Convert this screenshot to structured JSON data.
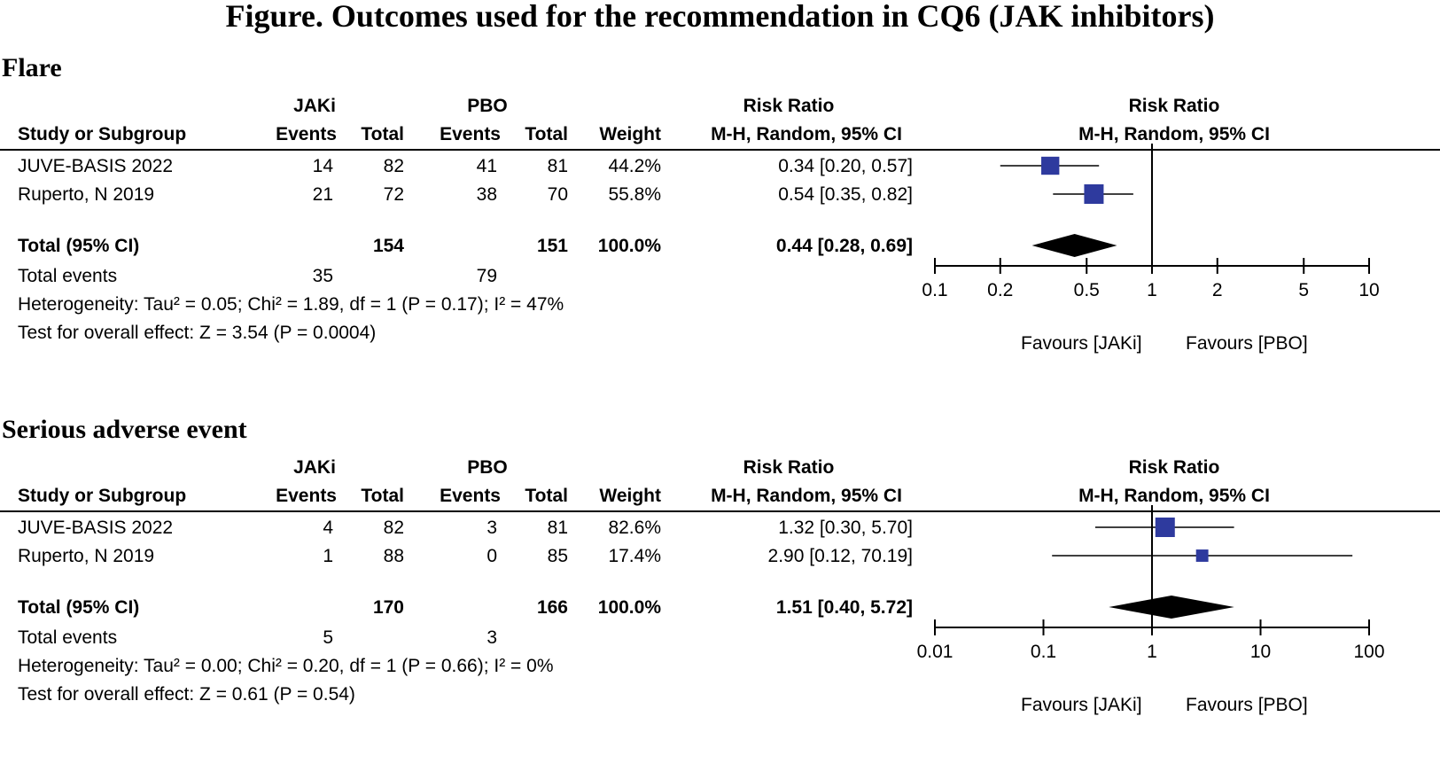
{
  "title": "Figure. Outcomes used for the recommendation in CQ6 (JAK inhibitors)",
  "header": {
    "group1": "JAKi",
    "group2": "PBO",
    "effect_top": "Risk Ratio",
    "study_col": "Study or Subgroup",
    "events": "Events",
    "total": "Total",
    "weight": "Weight",
    "method": "M-H, Random, 95% CI",
    "plot_top": "Risk Ratio",
    "plot_method": "M-H, Random, 95% CI"
  },
  "colors": {
    "study_marker": "#2E3A9E",
    "diamond": "#000000"
  },
  "sections": [
    {
      "heading": "Flare",
      "studies": [
        {
          "name": "JUVE-BASIS 2022",
          "e1": "14",
          "n1": "82",
          "e2": "41",
          "n2": "81",
          "weight": "44.2%",
          "ci_text": "0.34 [0.20, 0.57]"
        },
        {
          "name": "Ruperto, N 2019",
          "e1": "21",
          "n1": "72",
          "e2": "38",
          "n2": "70",
          "weight": "55.8%",
          "ci_text": "0.54 [0.35, 0.82]"
        }
      ],
      "total": {
        "label": "Total (95% CI)",
        "n1": "154",
        "n2": "151",
        "weight": "100.0%",
        "ci_text": "0.44 [0.28, 0.69]"
      },
      "total_events": {
        "label": "Total events",
        "e1": "35",
        "e2": "79"
      },
      "heterogeneity": "Heterogeneity: Tau² = 0.05; Chi² = 1.89, df = 1 (P = 0.17); I² = 47%",
      "overall": "Test for overall effect: Z = 3.54 (P = 0.0004)",
      "favours_left": "Favours [JAKi]",
      "favours_right": "Favours [PBO]"
    },
    {
      "heading": "Serious adverse event",
      "studies": [
        {
          "name": "JUVE-BASIS 2022",
          "e1": "4",
          "n1": "82",
          "e2": "3",
          "n2": "81",
          "weight": "82.6%",
          "ci_text": "1.32 [0.30, 5.70]"
        },
        {
          "name": "Ruperto, N 2019",
          "e1": "1",
          "n1": "88",
          "e2": "0",
          "n2": "85",
          "weight": "17.4%",
          "ci_text": "2.90 [0.12, 70.19]"
        }
      ],
      "total": {
        "label": "Total (95% CI)",
        "n1": "170",
        "n2": "166",
        "weight": "100.0%",
        "ci_text": "1.51 [0.40, 5.72]"
      },
      "total_events": {
        "label": "Total events",
        "e1": "5",
        "e2": "3"
      },
      "heterogeneity": "Heterogeneity: Tau² = 0.00; Chi² = 0.20, df = 1 (P = 0.66); I² = 0%",
      "overall": "Test for overall effect: Z = 0.61 (P = 0.54)",
      "favours_left": "Favours [JAKi]",
      "favours_right": "Favours [PBO]"
    }
  ],
  "chart_data": [
    {
      "type": "forest",
      "scale": "log",
      "xlim": [
        0.1,
        10
      ],
      "ticks": [
        0.1,
        0.2,
        0.5,
        1,
        2,
        5,
        10
      ],
      "tick_labels": [
        "0.1",
        "0.2",
        "0.5",
        "1",
        "2",
        "5",
        "10"
      ],
      "reference": 1,
      "studies": [
        {
          "name": "JUVE-BASIS 2022",
          "rr": 0.34,
          "lo": 0.2,
          "hi": 0.57,
          "weight": 44.2
        },
        {
          "name": "Ruperto, N 2019",
          "rr": 0.54,
          "lo": 0.35,
          "hi": 0.82,
          "weight": 55.8
        }
      ],
      "pooled": {
        "rr": 0.44,
        "lo": 0.28,
        "hi": 0.69
      }
    },
    {
      "type": "forest",
      "scale": "log",
      "xlim": [
        0.01,
        100
      ],
      "ticks": [
        0.01,
        0.1,
        1,
        10,
        100
      ],
      "tick_labels": [
        "0.01",
        "0.1",
        "1",
        "10",
        "100"
      ],
      "reference": 1,
      "studies": [
        {
          "name": "JUVE-BASIS 2022",
          "rr": 1.32,
          "lo": 0.3,
          "hi": 5.7,
          "weight": 82.6
        },
        {
          "name": "Ruperto, N 2019",
          "rr": 2.9,
          "lo": 0.12,
          "hi": 70.19,
          "weight": 17.4
        }
      ],
      "pooled": {
        "rr": 1.51,
        "lo": 0.4,
        "hi": 5.72
      }
    }
  ]
}
